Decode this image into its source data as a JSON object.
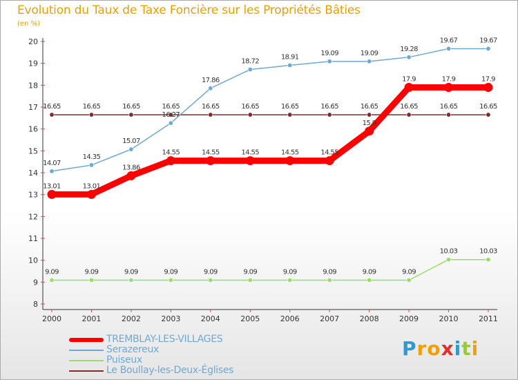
{
  "header": {
    "title": "Evolution du Taux de Taxe Foncière sur les Propriétés Bâties",
    "unit": "(en %)"
  },
  "brand": {
    "name": "Proxiti"
  },
  "chart_data": {
    "type": "line",
    "title": "Evolution du Taux de Taxe Foncière sur les Propriétés Bâties",
    "ylabel": "(en %)",
    "x": [
      "2000",
      "2001",
      "2002",
      "2003",
      "2004",
      "2005",
      "2006",
      "2007",
      "2008",
      "2009",
      "2010",
      "2011"
    ],
    "ylim": [
      8,
      20
    ],
    "yticks": [
      8,
      9,
      10,
      11,
      12,
      13,
      14,
      15,
      16,
      17,
      18,
      19,
      20
    ],
    "grid": false,
    "legend_position": "bottom-left",
    "series": [
      {
        "name": "TREMBLAY-LES-VILLAGES",
        "color": "#ff0000",
        "values": [
          13.01,
          13.01,
          13.86,
          14.55,
          14.55,
          14.55,
          14.55,
          14.55,
          15.9,
          17.9,
          17.9,
          17.9
        ],
        "labels": [
          "13.01",
          "13.01",
          "13.86",
          "14.55",
          "14.55",
          "14.55",
          "14.55",
          "14.55",
          "15.9",
          "17.9",
          "17.9",
          "17.9"
        ]
      },
      {
        "name": "Serazereux",
        "color": "#6fa8d4",
        "values": [
          14.07,
          14.35,
          15.07,
          16.27,
          17.86,
          18.72,
          18.91,
          19.09,
          19.09,
          19.28,
          19.67,
          19.67
        ],
        "labels": [
          "14.07",
          "14.35",
          "15.07",
          "16.27",
          "17.86",
          "18.72",
          "18.91",
          "19.09",
          "19.09",
          "19.28",
          "19.67",
          "19.67"
        ]
      },
      {
        "name": "Puiseux",
        "color": "#99dd66",
        "values": [
          9.09,
          9.09,
          9.09,
          9.09,
          9.09,
          9.09,
          9.09,
          9.09,
          9.09,
          9.09,
          10.03,
          10.03
        ],
        "labels": [
          "9.09",
          "9.09",
          "9.09",
          "9.09",
          "9.09",
          "9.09",
          "9.09",
          "9.09",
          "9.09",
          "9.09",
          "10.03",
          "10.03"
        ]
      },
      {
        "name": "Le Boullay-les-Deux-Églises",
        "color": "#7a2e2e",
        "values": [
          16.65,
          16.65,
          16.65,
          16.65,
          16.65,
          16.65,
          16.65,
          16.65,
          16.65,
          16.65,
          16.65,
          16.65
        ],
        "labels": [
          "16.65",
          "16.65",
          "16.65",
          "16.65",
          "16.65",
          "16.65",
          "16.65",
          "16.65",
          "16.65",
          "16.65",
          "16.65",
          "16.65"
        ]
      }
    ]
  }
}
